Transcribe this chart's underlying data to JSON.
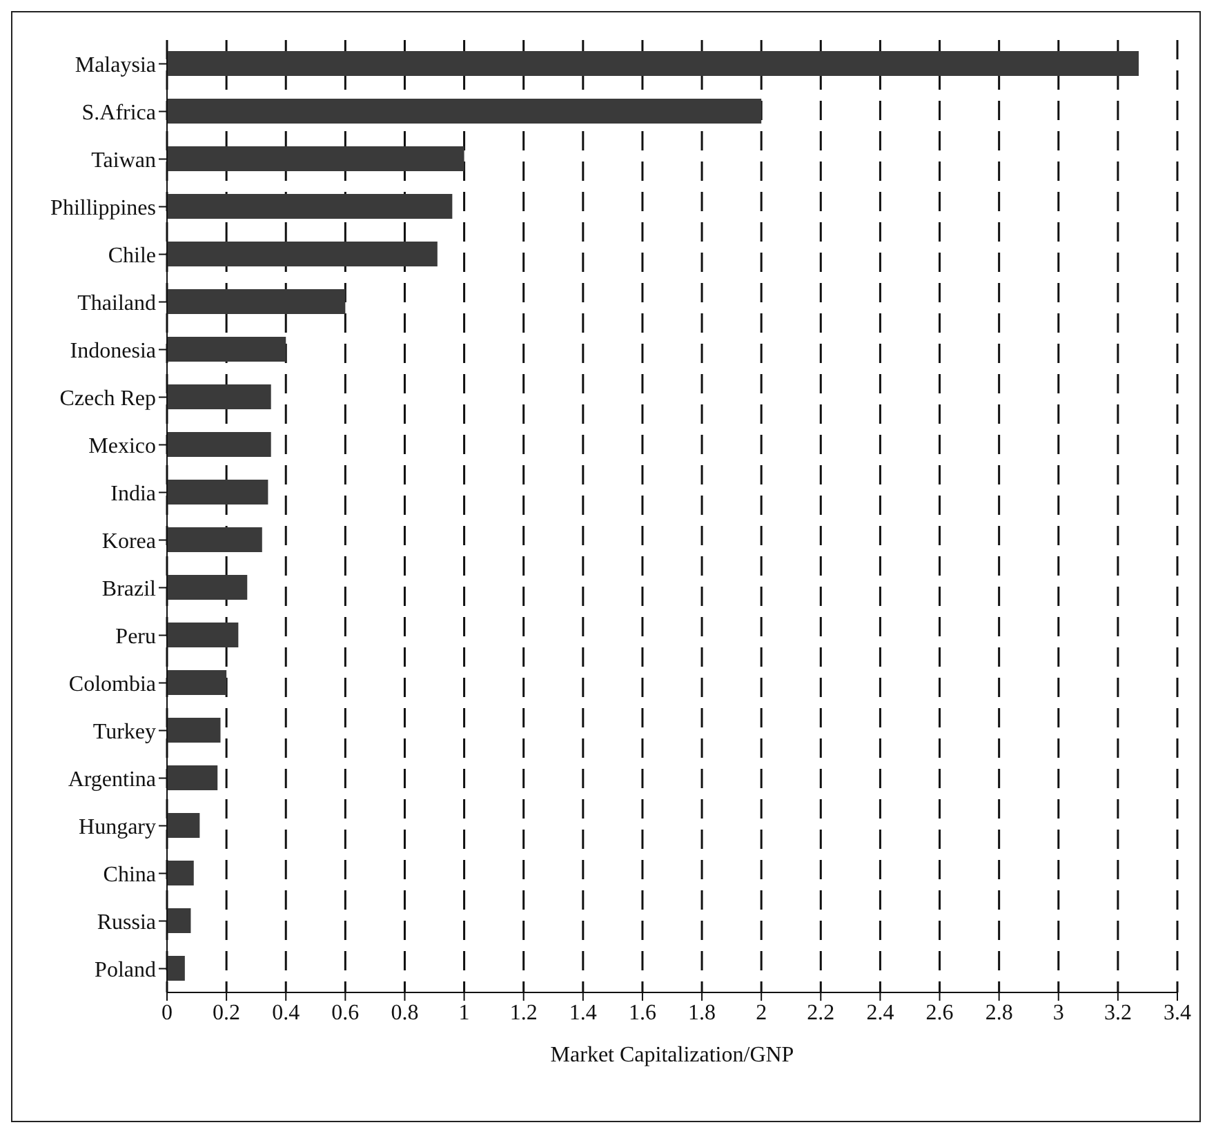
{
  "chart_data": {
    "type": "bar",
    "orientation": "horizontal",
    "xlabel": "Market Capitalization/GNP",
    "categories": [
      "Malaysia",
      "S.Africa",
      "Taiwan",
      "Phillippines",
      "Chile",
      "Thailand",
      "Indonesia",
      "Czech Rep",
      "Mexico",
      "India",
      "Korea",
      "Brazil",
      "Peru",
      "Colombia",
      "Turkey",
      "Argentina",
      "Hungary",
      "China",
      "Russia",
      "Poland"
    ],
    "values": [
      3.27,
      2.0,
      1.0,
      0.96,
      0.91,
      0.6,
      0.4,
      0.35,
      0.35,
      0.34,
      0.32,
      0.27,
      0.24,
      0.2,
      0.18,
      0.17,
      0.11,
      0.09,
      0.08,
      0.06
    ],
    "color": "#3a3a3a",
    "xlim": [
      0,
      3.4
    ],
    "xticks": [
      0,
      0.2,
      0.4,
      0.6,
      0.8,
      1,
      1.2,
      1.4,
      1.6,
      1.8,
      2,
      2.2,
      2.4,
      2.6,
      2.8,
      3,
      3.2,
      3.4
    ],
    "grid": "x"
  }
}
